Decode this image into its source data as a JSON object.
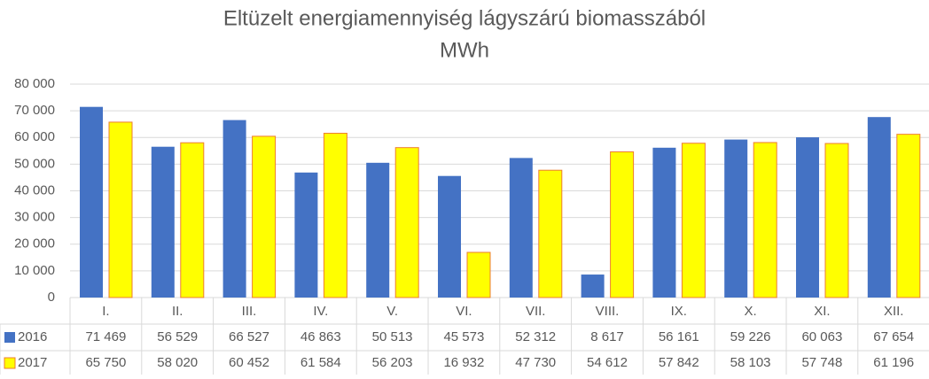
{
  "chart_data": {
    "type": "bar",
    "title": "Eltüzelt energiamennyiség lágyszárú biomasszából",
    "subtitle": "MWh",
    "categories": [
      "I.",
      "II.",
      "III.",
      "IV.",
      "V.",
      "VI.",
      "VII.",
      "VIII.",
      "IX.",
      "X.",
      "XI.",
      "XII."
    ],
    "series": [
      {
        "name": "2016",
        "color": "#4472c4",
        "values": [
          71469,
          56529,
          66527,
          46863,
          50513,
          45573,
          52312,
          8617,
          56161,
          59226,
          60063,
          67654
        ],
        "value_labels": [
          "71 469",
          "56 529",
          "66 527",
          "46 863",
          "50 513",
          "45 573",
          "52 312",
          "8 617",
          "56 161",
          "59 226",
          "60 063",
          "67 654"
        ]
      },
      {
        "name": "2017",
        "color": "#ffff00",
        "values": [
          65750,
          58020,
          60452,
          61584,
          56203,
          16932,
          47730,
          54612,
          57842,
          58103,
          57748,
          61196
        ],
        "value_labels": [
          "65 750",
          "58 020",
          "60 452",
          "61 584",
          "56 203",
          "16 932",
          "47 730",
          "54 612",
          "57 842",
          "58 103",
          "57 748",
          "61 196"
        ]
      }
    ],
    "ylim": [
      0,
      80000
    ],
    "yticks": [
      0,
      {
        "value": 10000,
        "label": "10 000"
      },
      {
        "value": 20000,
        "label": "20 000"
      },
      {
        "value": 30000,
        "label": "30 000"
      },
      {
        "value": 40000,
        "label": "40 000"
      },
      {
        "value": 50000,
        "label": "50 000"
      },
      {
        "value": 60000,
        "label": "60 000"
      },
      {
        "value": 70000,
        "label": "70 000"
      },
      {
        "value": 80000,
        "label": "80 000"
      }
    ],
    "grid": true
  }
}
